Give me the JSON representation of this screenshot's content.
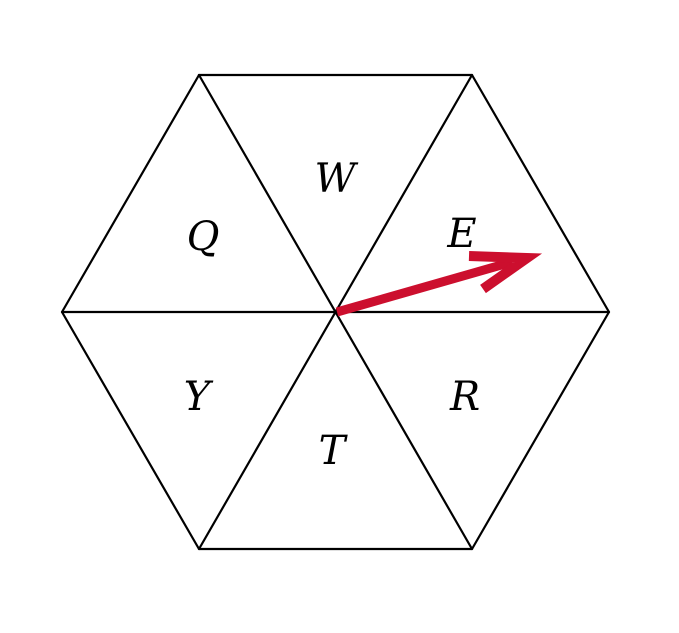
{
  "figure": {
    "type": "hexagon-spinner",
    "stroke_color": "#000000",
    "arrow_color": "#cc0f2e",
    "sectors": [
      {
        "id": "W",
        "label": "W"
      },
      {
        "id": "Q",
        "label": "Q"
      },
      {
        "id": "E",
        "label": "E"
      },
      {
        "id": "Y",
        "label": "Y"
      },
      {
        "id": "R",
        "label": "R"
      },
      {
        "id": "T",
        "label": "T"
      }
    ],
    "pointer": {
      "points_to": "E"
    }
  }
}
